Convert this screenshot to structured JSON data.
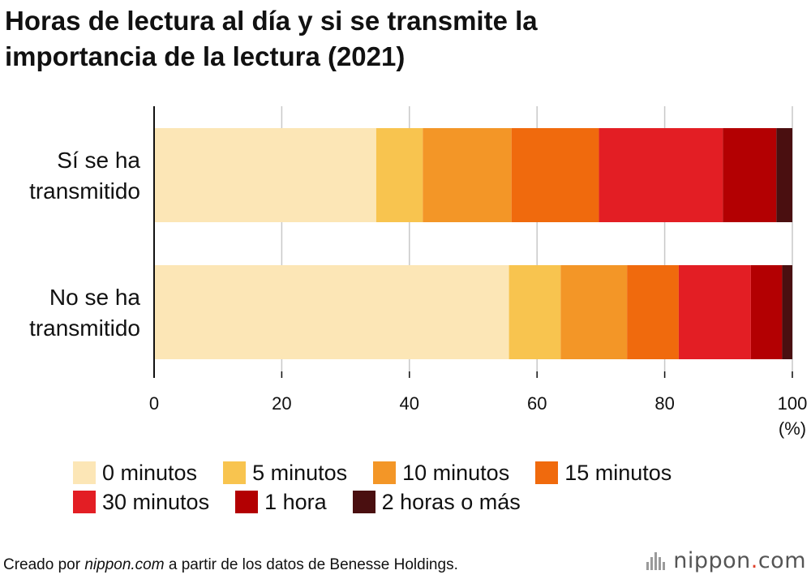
{
  "title_lines": [
    "Horas de lectura al día y si se transmite la",
    "importancia de la lectura (2021)"
  ],
  "chart_data": {
    "type": "bar",
    "orientation": "horizontal",
    "stacked": true,
    "categories": [
      "Sí se ha transmitido",
      "No se ha transmitido"
    ],
    "category_lines": [
      [
        "Sí se ha",
        "transmitido"
      ],
      [
        "No se ha",
        "transmitido"
      ]
    ],
    "series": [
      {
        "name": "0 minutos",
        "color": "#fce6b6",
        "values": [
          34.8,
          55.6
        ]
      },
      {
        "name": "5 minutos",
        "color": "#f8c44f",
        "values": [
          7.3,
          8.1
        ]
      },
      {
        "name": "10 minutos",
        "color": "#f39627",
        "values": [
          13.9,
          10.4
        ]
      },
      {
        "name": "15 minutos",
        "color": "#f06a0d",
        "values": [
          13.7,
          8.1
        ]
      },
      {
        "name": "30 minutos",
        "color": "#e31e24",
        "values": [
          19.4,
          11.3
        ]
      },
      {
        "name": "1 hora",
        "color": "#b30002",
        "values": [
          8.4,
          4.9
        ]
      },
      {
        "name": "2 horas o más",
        "color": "#4a0f10",
        "values": [
          2.5,
          1.6
        ]
      }
    ],
    "xlim": [
      0,
      100
    ],
    "xticks": [
      0,
      20,
      40,
      60,
      80,
      100
    ],
    "unit_label": "(%)",
    "grid": true
  },
  "footer": {
    "prefix": "Creado por ",
    "site": "nippon.com",
    "suffix": " a partir de los datos de Benesse Holdings."
  },
  "brand": {
    "name": "nippon",
    "dot": ".",
    "tld": "com"
  }
}
